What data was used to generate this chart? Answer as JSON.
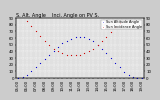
{
  "title": "S. Alt. Angle    Inci. Angle on PV S.",
  "legend_labels": [
    "Sun Altitude Angle",
    "Sun Incidence Angle"
  ],
  "legend_colors": [
    "#0000cc",
    "#cc0000"
  ],
  "bg_color": "#cccccc",
  "plot_bg": "#e0e0e0",
  "grid_color": "#ffffff",
  "x_times": [
    "05:00",
    "05:30",
    "06:00",
    "06:30",
    "07:00",
    "07:30",
    "08:00",
    "08:30",
    "09:00",
    "09:30",
    "10:00",
    "10:30",
    "11:00",
    "11:30",
    "12:00",
    "12:30",
    "13:00",
    "13:30",
    "14:00",
    "14:30",
    "15:00",
    "15:30",
    "16:00",
    "16:30",
    "17:00",
    "17:30",
    "18:00",
    "18:30",
    "19:00"
  ],
  "altitude_y": [
    0,
    2,
    5,
    10,
    16,
    22,
    29,
    35,
    41,
    47,
    52,
    56,
    59,
    61,
    62,
    61,
    59,
    55,
    50,
    44,
    37,
    30,
    23,
    16,
    9,
    4,
    1,
    0,
    0
  ],
  "incidence_y": [
    null,
    null,
    85,
    78,
    70,
    63,
    56,
    50,
    44,
    40,
    37,
    35,
    34,
    34,
    35,
    37,
    40,
    44,
    49,
    55,
    62,
    69,
    76,
    83,
    null,
    null,
    null,
    null,
    null
  ],
  "ylim": [
    0,
    90
  ],
  "y_ticks": [
    0,
    10,
    20,
    30,
    40,
    50,
    60,
    70,
    80,
    90
  ],
  "title_fontsize": 3.5,
  "tick_fontsize": 2.8,
  "legend_fontsize": 2.5,
  "marker_size": 0.8
}
